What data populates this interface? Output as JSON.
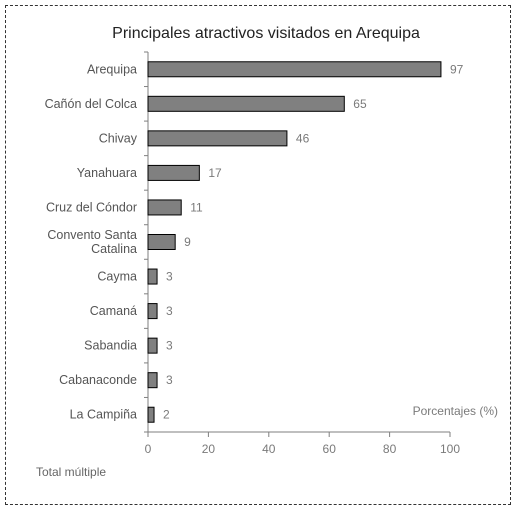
{
  "chart_data": {
    "type": "bar",
    "orientation": "horizontal",
    "title": "Principales atractivos visitados en Arequipa",
    "xlabel": "Porcentajes (%)",
    "ylabel": "",
    "categories": [
      "Arequipa",
      "Cañón del Colca",
      "Chivay",
      "Yanahuara",
      "Cruz del Cóndor",
      "Convento Santa Catalina",
      "Cayma",
      "Camaná",
      "Sabandia",
      "Cabanaconde",
      "La Campiña"
    ],
    "category_lines": [
      [
        "Arequipa"
      ],
      [
        "Cañón del Colca"
      ],
      [
        "Chivay"
      ],
      [
        "Yanahuara"
      ],
      [
        "Cruz del Cóndor"
      ],
      [
        "Convento Santa",
        "Catalina"
      ],
      [
        "Cayma"
      ],
      [
        "Camaná"
      ],
      [
        "Sabandia"
      ],
      [
        "Cabanaconde"
      ],
      [
        "La Campiña"
      ]
    ],
    "values": [
      97,
      65,
      46,
      17,
      11,
      9,
      3,
      3,
      3,
      3,
      2
    ],
    "xlim": [
      0,
      100
    ],
    "xticks": [
      0,
      20,
      40,
      60,
      80,
      100
    ],
    "grid": false,
    "bar_color": "#808080",
    "bar_edge_color": "#000000"
  },
  "footnote": "Total múltiple"
}
